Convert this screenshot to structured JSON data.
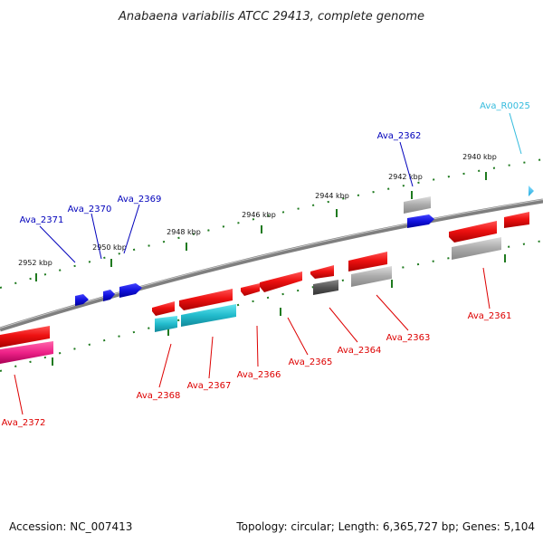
{
  "title": "Anabaena variabilis ATCC 29413, complete genome",
  "footer": {
    "accession": "Accession: NC_007413",
    "summary": "Topology: circular; Length: 6,365,727 bp; Genes: 5,104"
  },
  "scale_labels": [
    "2940 kbp",
    "2942 kbp",
    "2944 kbp",
    "2946 kbp",
    "2948 kbp",
    "2950 kbp",
    "2952 kbp"
  ],
  "colors": {
    "backbone": "#7f7f7f",
    "ticks": "#1f7a1f",
    "red_gene": "#ee1111",
    "blue_gene": "#1111dd",
    "cyan_gene": "#22bbcc",
    "pink_gene": "#ee2288",
    "gray_gene": "#aaaaaa",
    "dark_gene": "#555555",
    "label_red": "#dd0000",
    "label_blue": "#0000bb",
    "label_cyan": "#33bbdd"
  },
  "gene_labels": [
    "Ava_R0025",
    "Ava_2362",
    "Ava_2369",
    "Ava_2370",
    "Ava_2371",
    "Ava_2361",
    "Ava_2363",
    "Ava_2364",
    "Ava_2365",
    "Ava_2366",
    "Ava_2367",
    "Ava_2368",
    "Ava_2372"
  ]
}
